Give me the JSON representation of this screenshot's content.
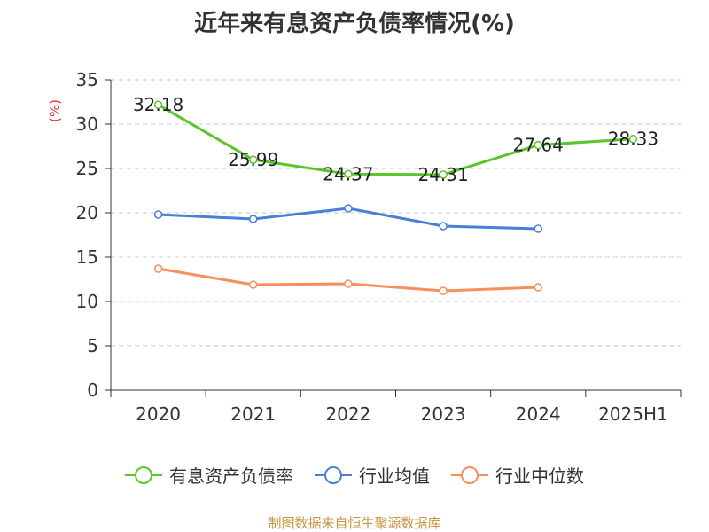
{
  "title": "近年来有息资产负债率情况(%)",
  "source": "制图数据来自恒生聚源数据库",
  "chart_data": {
    "type": "line",
    "title": "近年来有息资产负债率情况(%)",
    "ylabel": "(%)",
    "xlabel": "",
    "categories": [
      "2020",
      "2021",
      "2022",
      "2023",
      "2024",
      "2025H1"
    ],
    "ylim": [
      0,
      35
    ],
    "yticks": [
      0,
      5,
      10,
      15,
      20,
      25,
      30,
      35
    ],
    "grid": "horizontal dashed",
    "legend_position": "bottom",
    "series": [
      {
        "name": "有息资产负债率",
        "color": "#5cc42c",
        "values": [
          32.18,
          25.99,
          24.37,
          24.31,
          27.64,
          28.33
        ],
        "labels": [
          "32.18",
          "25.99",
          "24.37",
          "24.31",
          "27.64",
          "28.33"
        ],
        "show_labels": true
      },
      {
        "name": "行业均值",
        "color": "#4a7fd8",
        "values": [
          19.8,
          19.3,
          20.5,
          18.5,
          18.2,
          null
        ],
        "show_labels": false
      },
      {
        "name": "行业中位数",
        "color": "#f58f5b",
        "values": [
          13.7,
          11.9,
          12.0,
          11.2,
          11.6,
          null
        ],
        "show_labels": false
      }
    ]
  }
}
